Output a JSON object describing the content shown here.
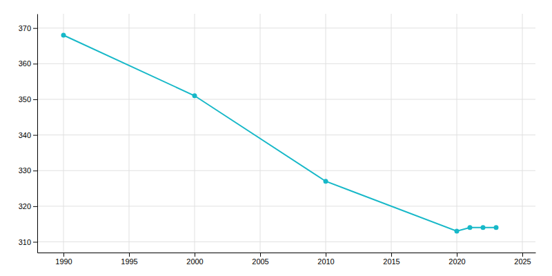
{
  "chart_data": {
    "type": "line",
    "x": [
      1990,
      2000,
      2010,
      2020,
      2021,
      2022,
      2023
    ],
    "values": [
      368,
      351,
      327,
      313,
      314,
      314,
      314
    ],
    "color": "#17b8c8",
    "marker": "circle",
    "xlim": [
      1988,
      2026
    ],
    "ylim": [
      307,
      374
    ],
    "xticks": [
      1990,
      1995,
      2000,
      2005,
      2010,
      2015,
      2020,
      2025
    ],
    "yticks": [
      310,
      320,
      330,
      340,
      350,
      360,
      370
    ],
    "grid": true
  }
}
